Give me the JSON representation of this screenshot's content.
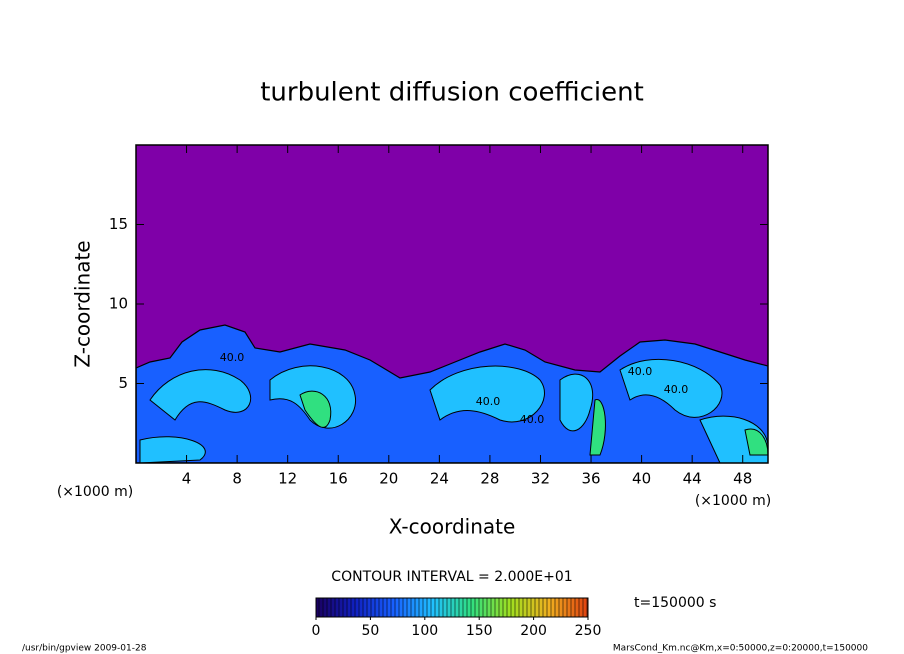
{
  "chart_data": {
    "type": "contour",
    "title": "turbulent diffusion coefficient",
    "x_label": "X-coordinate",
    "y_label": "Z-coordinate",
    "x_unit": "(×1000 m)",
    "x_unit_right": "(×1000 m)",
    "xlim": [
      0,
      50
    ],
    "xticks": [
      4,
      8,
      12,
      16,
      20,
      24,
      28,
      32,
      36,
      40,
      44,
      48
    ],
    "ylim": [
      0,
      20
    ],
    "yticks": [
      5,
      10,
      15
    ],
    "contour_interval": "CONTOUR INTERVAL = 2.000E+01",
    "contour_labels": [
      "40.0",
      "40.0",
      "40.0",
      "40.0",
      "40.0"
    ],
    "background_color": "#7f00a8",
    "colormap": [
      "#1a0060",
      "#1020c0",
      "#1860ff",
      "#20c0ff",
      "#30e080",
      "#a0e020",
      "#f0b020",
      "#e04010"
    ],
    "clim": [
      0,
      250
    ],
    "cticks": [
      0,
      50,
      100,
      150,
      200,
      250
    ],
    "time_label": "t=150000 s",
    "footer_left": "/usr/bin/gpview   2009-01-28",
    "footer_right": "MarsCond_Km.nc@Km,x=0:50000,z=0:20000,t=150000"
  }
}
